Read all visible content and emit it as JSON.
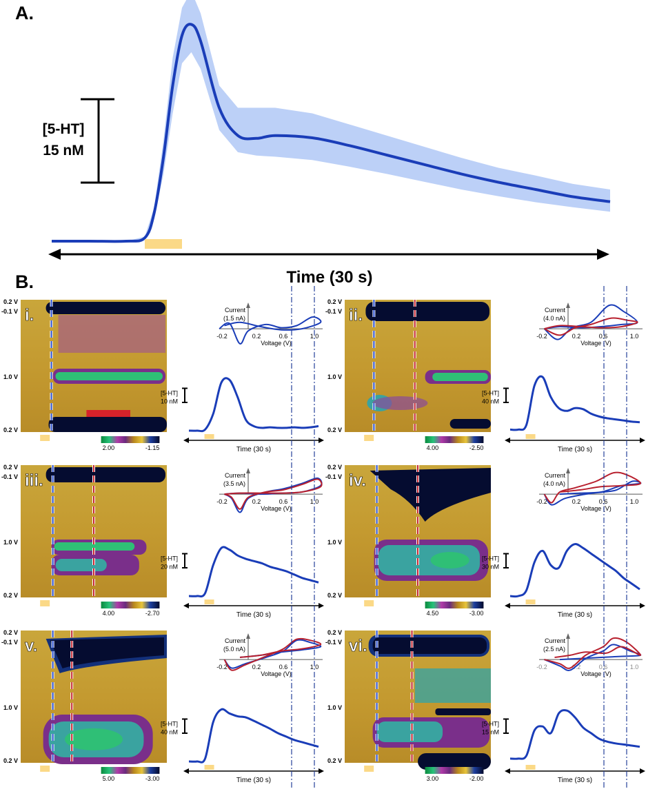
{
  "panel_a": {
    "letter": "A.",
    "scale_label_line1": "[5-HT]",
    "scale_label_line2": "15 nM",
    "time_label": "Time (30 s)"
  },
  "panel_b": {
    "letter": "B."
  },
  "colors": {
    "trace": "#1a3db8",
    "trace_band": "#bcd0f7",
    "stim": "#fbd987",
    "red_cv": "#b8202e",
    "axis": "#000000"
  },
  "cv_axis_labels": {
    "current": "Current",
    "voltage": "Voltage (V)",
    "ticks": [
      "-0.2",
      "0.2",
      "0.6",
      "1.0"
    ]
  },
  "cv_ticks_panel_i": [
    "-0.2",
    "0.2",
    "0.6",
    "1.0"
  ],
  "color_plot_axis": {
    "top": "0.2 V",
    "second": "-0.1 V",
    "mid": "1.0 V",
    "bottom": "0.2 V"
  },
  "subpanels": [
    {
      "id": "i",
      "roman": "i.",
      "cv_scale": "(1.5 nA)",
      "trace_scale_l1": "[5-HT]",
      "trace_scale_l2": "10 nM",
      "cbar_max": "2.00",
      "cbar_min": "-1.15",
      "time": "Time (30 s)"
    },
    {
      "id": "ii",
      "roman": "ii.",
      "cv_scale": "(4.0 nA)",
      "trace_scale_l1": "[5-HT]",
      "trace_scale_l2": "40 nM",
      "cbar_max": "4.00",
      "cbar_min": "-2.50",
      "time": "Time (30 s)"
    },
    {
      "id": "iii",
      "roman": "iii.",
      "cv_scale": "(3.5 nA)",
      "trace_scale_l1": "[5-HT]",
      "trace_scale_l2": "20 nM",
      "cbar_max": "4.00",
      "cbar_min": "-2.70",
      "time": "Time (30 s)"
    },
    {
      "id": "iv",
      "roman": "iv.",
      "cv_scale": "(4.0 nA)",
      "trace_scale_l1": "[5-HT]",
      "trace_scale_l2": "30 nM",
      "cbar_max": "4.50",
      "cbar_min": "-3.00",
      "time": "Time (30 s)"
    },
    {
      "id": "v",
      "roman": "v.",
      "cv_scale": "(5.0 nA)",
      "trace_scale_l1": "[5-HT]",
      "trace_scale_l2": "40 nM",
      "cbar_max": "5.00",
      "cbar_min": "-3.00",
      "time": "Time (30 s)"
    },
    {
      "id": "vi",
      "roman": "vi.",
      "cv_scale": "(2.5 nA)",
      "trace_scale_l1": "[5-HT]",
      "trace_scale_l2": "15 nM",
      "cbar_max": "3.00",
      "cbar_min": "-2.00",
      "time": "Time (30 s)"
    }
  ],
  "chart_data": [
    {
      "type": "line",
      "panel": "A",
      "xlabel": "Time (30 s)",
      "ylabel": "[5-HT]",
      "scale_bar": "15 nM",
      "units_y": "nM",
      "x": [
        0,
        2,
        4,
        5,
        5.5,
        6,
        6.5,
        7,
        7.5,
        8,
        9,
        10,
        11,
        12,
        14,
        16,
        18,
        20,
        22,
        24,
        26,
        28,
        30
      ],
      "y": [
        0,
        0,
        0,
        0.6,
        5,
        15,
        28,
        37,
        39,
        36,
        24,
        19,
        18.5,
        19,
        18.6,
        17.2,
        15.5,
        13.8,
        12.1,
        10.6,
        9.3,
        8.0,
        7.1
      ],
      "y_upper": [
        0,
        0,
        0,
        0.8,
        6,
        18,
        33,
        42,
        45,
        41,
        28,
        24,
        24,
        24,
        23,
        21,
        19,
        17,
        15,
        13.2,
        11.8,
        10.3,
        9.3
      ],
      "y_lower": [
        0,
        0,
        0,
        0.4,
        4,
        12,
        23,
        32,
        34,
        31,
        20,
        16,
        15.4,
        15.2,
        14.6,
        13.4,
        12.1,
        10.7,
        9.3,
        8.1,
        7.0,
        6.1,
        5.3
      ],
      "stimulation": [
        5,
        7
      ]
    }
  ]
}
